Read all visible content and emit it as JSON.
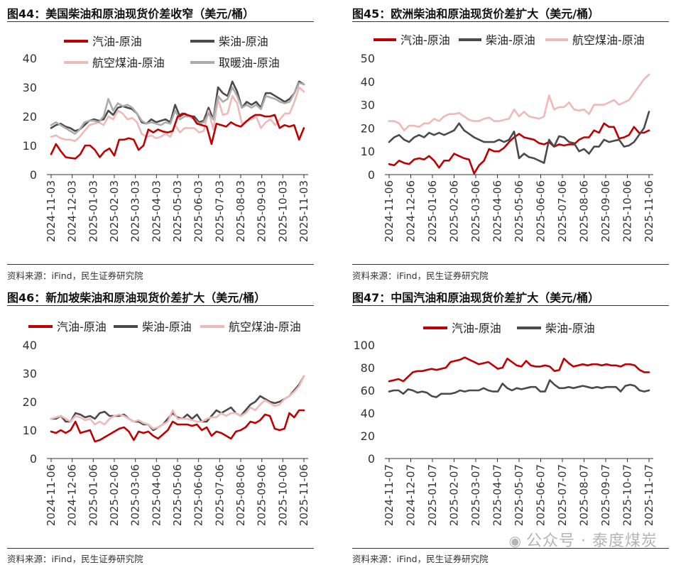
{
  "watermark": {
    "text": "公众号 · 泰度煤炭",
    "icon": "wechat-icon"
  },
  "source_label": "资料来源：iFind，民生证券研究院",
  "chart_data": [
    {
      "type": "line",
      "title": "图44：美国柴油和原油现货价差收窄（美元/桶）",
      "ylim": [
        0,
        40
      ],
      "yticks": [
        0,
        10,
        20,
        30,
        40
      ],
      "xticks": [
        "2024-11-03",
        "2024-12-03",
        "2025-01-03",
        "2025-02-03",
        "2025-03-03",
        "2025-04-03",
        "2025-05-03",
        "2025-06-03",
        "2025-07-03",
        "2025-08-03",
        "2025-09-03",
        "2025-10-03",
        "2025-11-03"
      ],
      "legend_position": "top, two rows",
      "series": [
        {
          "name": "汽油-原油",
          "color": "#c00000",
          "values": [
            7,
            10.5,
            8,
            6,
            5.7,
            5.5,
            7,
            10,
            10,
            8.5,
            6,
            8,
            9,
            6.5,
            12,
            12,
            12.5,
            12,
            8.5,
            10,
            15.5,
            14.5,
            15.5,
            14.8,
            14.5,
            15,
            19.8,
            21,
            20.5,
            20,
            17.5,
            17,
            16.5,
            10.5,
            17.5,
            17,
            16.5,
            18,
            17,
            16.5,
            18,
            19.5,
            20.5,
            20.5,
            20,
            20,
            20.5,
            16,
            17,
            16.5,
            17,
            12,
            16
          ]
        },
        {
          "name": "柴油-原油",
          "color": "#4a4a4a",
          "values": [
            16,
            17,
            17.5,
            16.5,
            16,
            15,
            15.5,
            17,
            18.5,
            19,
            18.5,
            19,
            22,
            20.5,
            23,
            23.5,
            23,
            22.5,
            21,
            18,
            17.5,
            19,
            18,
            18.5,
            19,
            18,
            24,
            20,
            21,
            20,
            20,
            18,
            18.5,
            23,
            19,
            30,
            28,
            27,
            32,
            28.5,
            23,
            25,
            24,
            25,
            23,
            28,
            28,
            27,
            26,
            25,
            26,
            28,
            32,
            31
          ]
        },
        {
          "name": "航空煤油-原油",
          "color": "#f0b9b9",
          "values": [
            13,
            13.5,
            12.5,
            12,
            12,
            11.5,
            13,
            15,
            17,
            17.5,
            18,
            17,
            20,
            19,
            22,
            21,
            19,
            19.5,
            18,
            14,
            13,
            13.5,
            12.5,
            13,
            14,
            13,
            17,
            14.5,
            16,
            16,
            16,
            14.5,
            15,
            22,
            15.5,
            26,
            20.5,
            21,
            27,
            24.5,
            17.5,
            18.5,
            19,
            20,
            16,
            18,
            19,
            17,
            19,
            21,
            21,
            25,
            30,
            28.5
          ]
        },
        {
          "name": "取暖油-原油",
          "color": "#ababab",
          "values": [
            17,
            18,
            17,
            16,
            15,
            14,
            15.5,
            18,
            18.5,
            18.5,
            18,
            20,
            26,
            22,
            24.5,
            23.5,
            24,
            23,
            21,
            18.5,
            17.5,
            18,
            17.5,
            17,
            18,
            17.5,
            22,
            19,
            20,
            20,
            19,
            17.5,
            18,
            21,
            19,
            27,
            25,
            26,
            30,
            27,
            23,
            24,
            23,
            24,
            22.5,
            27,
            26.5,
            26,
            25,
            24.5,
            25,
            28,
            31.5,
            31
          ]
        }
      ]
    },
    {
      "type": "line",
      "title": "图45：欧洲柴油和原油现货价差扩大（美元/桶）",
      "ylim": [
        0,
        50
      ],
      "yticks": [
        0,
        10,
        20,
        30,
        40,
        50
      ],
      "xticks": [
        "2024-11-06",
        "2024-12-06",
        "2025-01-06",
        "2025-02-06",
        "2025-03-06",
        "2025-04-06",
        "2025-05-06",
        "2025-06-06",
        "2025-07-06",
        "2025-08-06",
        "2025-09-06",
        "2025-10-06",
        "2025-11-06"
      ],
      "legend_position": "top",
      "series": [
        {
          "name": "汽油-原油",
          "color": "#c00000",
          "values": [
            4.5,
            4,
            6,
            5,
            4.5,
            6.5,
            7,
            6.5,
            8,
            6,
            3,
            6,
            6,
            9,
            8,
            7,
            6.5,
            0.5,
            4,
            6,
            11,
            10,
            10,
            11.5,
            14,
            16,
            17.5,
            16,
            15.5,
            15,
            13.5,
            13,
            14,
            12,
            13,
            12.5,
            13,
            13,
            15,
            16,
            16,
            19,
            18,
            22,
            20.5,
            20.5,
            15.5,
            16,
            17,
            20.5,
            18,
            18,
            19
          ]
        },
        {
          "name": "柴油-原油",
          "color": "#4a4a4a",
          "values": [
            14,
            16,
            17,
            15,
            14,
            16,
            17,
            16,
            18,
            17,
            18,
            17,
            18,
            19,
            22,
            19,
            17.5,
            16,
            15,
            14,
            14,
            14,
            15,
            14,
            15,
            18.5,
            7,
            9,
            7.5,
            7,
            6,
            5,
            15,
            12,
            16.5,
            16,
            14,
            13.5,
            10,
            11,
            9,
            12,
            12,
            15,
            14,
            14.5,
            15,
            12,
            12.5,
            14,
            17,
            20,
            27
          ]
        },
        {
          "name": "航空煤油-原油",
          "color": "#f0b9b9",
          "values": [
            23,
            23,
            22,
            19,
            21,
            21,
            20.5,
            22,
            22,
            24,
            23,
            25,
            26,
            26,
            26.5,
            25,
            23.5,
            23,
            23,
            24,
            24.5,
            23,
            23,
            23.5,
            24,
            28,
            25,
            27,
            25,
            24.5,
            24,
            25,
            34,
            28,
            29,
            29,
            31,
            28,
            27.5,
            28,
            26,
            30,
            30,
            30,
            31,
            32,
            30,
            31,
            32,
            35,
            38,
            41,
            43
          ]
        }
      ]
    },
    {
      "type": "line",
      "title": "图46：新加坡柴油和原油现货价差扩大（美元/桶）",
      "ylim": [
        0,
        40
      ],
      "yticks": [
        0,
        10,
        20,
        30,
        40
      ],
      "xticks": [
        "2024-11-06",
        "2024-12-06",
        "2025-01-06",
        "2025-02-06",
        "2025-03-06",
        "2025-04-06",
        "2025-05-06",
        "2025-06-06",
        "2025-07-06",
        "2025-08-06",
        "2025-09-06",
        "2025-10-06",
        "2025-11-06"
      ],
      "legend_position": "top",
      "series": [
        {
          "name": "汽油-原油",
          "color": "#c00000",
          "values": [
            9.5,
            9,
            10,
            9,
            10,
            13,
            9,
            9.5,
            10,
            6,
            6.5,
            7.5,
            8.5,
            9.5,
            10.5,
            11,
            9.5,
            6.5,
            9.5,
            9,
            9.5,
            8,
            7,
            8.5,
            10,
            13,
            12,
            12,
            12,
            11.5,
            12,
            10,
            11,
            8,
            9.5,
            9,
            8,
            7,
            9.5,
            10,
            11,
            13,
            12.5,
            13.5,
            15.5,
            15,
            10.5,
            10,
            10.5,
            16,
            14.5,
            17,
            17
          ]
        },
        {
          "name": "柴油-原油",
          "color": "#4a4a4a",
          "values": [
            14,
            14,
            15,
            13,
            13,
            16,
            15.5,
            14.5,
            15,
            14,
            16,
            16.5,
            15,
            15,
            15,
            15.5,
            14,
            13,
            13,
            12,
            12,
            10,
            11,
            12,
            14,
            16,
            14.5,
            14,
            15.5,
            14,
            15.5,
            13,
            13,
            15,
            17,
            16,
            17,
            18,
            16,
            15,
            17,
            19,
            20,
            22,
            21,
            20,
            19.5,
            20,
            21,
            22,
            24,
            26,
            29
          ]
        },
        {
          "name": "航空煤油-原油",
          "color": "#f0b9b9",
          "values": [
            14,
            14.5,
            15,
            14,
            13,
            15,
            14.5,
            13.5,
            14,
            12,
            13,
            12,
            14,
            15,
            15.5,
            15,
            14,
            13,
            13.5,
            12.5,
            12,
            10.5,
            11,
            12,
            13,
            17,
            14,
            14,
            14,
            13.5,
            13,
            13,
            14,
            14.5,
            14.5,
            16,
            15,
            16,
            16,
            15,
            16,
            18,
            17,
            19,
            20.5,
            19.5,
            18.5,
            19,
            21,
            22,
            23.5,
            25.5,
            29
          ]
        }
      ]
    },
    {
      "type": "line",
      "title": "图47：中国汽油和原油现货价差扩大（美元/桶）",
      "ylim": [
        0,
        100
      ],
      "yticks": [
        0,
        20,
        40,
        60,
        80,
        100
      ],
      "xticks": [
        "2024-11-07",
        "2024-12-07",
        "2025-01-07",
        "2025-02-07",
        "2025-03-07",
        "2025-04-07",
        "2025-05-07",
        "2025-06-07",
        "2025-07-07",
        "2025-08-07",
        "2025-09-07",
        "2025-10-07",
        "2025-11-07"
      ],
      "legend_position": "top",
      "series": [
        {
          "name": "汽油-原油",
          "color": "#c00000",
          "values": [
            68,
            69,
            70,
            68,
            72,
            76,
            77,
            77,
            78,
            79,
            78,
            79,
            80,
            85,
            86,
            87,
            89,
            87,
            85,
            83,
            84,
            85,
            82,
            79,
            80,
            88,
            85,
            82,
            81,
            86,
            82,
            81,
            81,
            82,
            81,
            77,
            78,
            88,
            84,
            81,
            82,
            83,
            82,
            83,
            83,
            82,
            83,
            82,
            82,
            81,
            83,
            83,
            82,
            78,
            76,
            76
          ]
        },
        {
          "name": "柴油-原油",
          "color": "#4a4a4a",
          "values": [
            59,
            60,
            60,
            57,
            61,
            60,
            58,
            59,
            58,
            55,
            54,
            57,
            57,
            57,
            58,
            60,
            59,
            60,
            60,
            60,
            62,
            60,
            59,
            59,
            66,
            62,
            60,
            62,
            61,
            62,
            63,
            63,
            59,
            59,
            69,
            65,
            62,
            62,
            63,
            62,
            63,
            64,
            63,
            62,
            63,
            62,
            63,
            63,
            63,
            59,
            64,
            65,
            64,
            60,
            59,
            60
          ]
        }
      ]
    }
  ]
}
